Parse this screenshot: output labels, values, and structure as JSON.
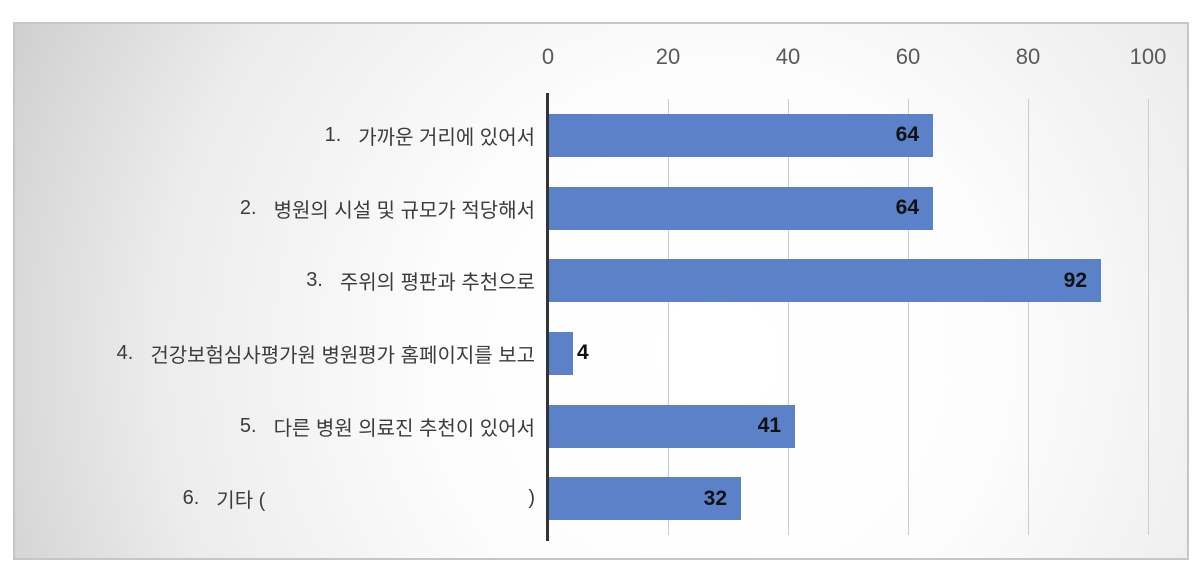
{
  "chart_data": {
    "type": "bar",
    "orientation": "horizontal",
    "title": "",
    "legend": false,
    "gridlines": true,
    "categories": [
      {
        "no": "1.",
        "label": "가까운 거리에 있어서"
      },
      {
        "no": "2.",
        "label": "병원의 시설 및 규모가 적당해서"
      },
      {
        "no": "3.",
        "label": "주위의 평판과 추천으로"
      },
      {
        "no": "4.",
        "label": "건강보험심사평가원 병원평가 홈페이지를 보고"
      },
      {
        "no": "5.",
        "label": "다른 병원 의료진 추천이 있어서"
      },
      {
        "no": "6.",
        "label": "기타 (",
        "label_suffix": ")"
      }
    ],
    "values": [
      64,
      64,
      92,
      4,
      41,
      32
    ],
    "data_labels": [
      "64",
      "64",
      "92",
      "4",
      "41",
      "32"
    ],
    "x_axis": {
      "position": "top",
      "min": 0,
      "max": 100,
      "ticks": [
        0,
        20,
        40,
        60,
        80,
        100
      ],
      "tick_labels": [
        "0",
        "20",
        "40",
        "60",
        "80",
        "100"
      ]
    },
    "colors": {
      "bar": "#5b82c9",
      "value_label": "#111111",
      "tick_label": "#595959",
      "category_label": "#3c3c3c",
      "gridline": "#cccccc",
      "axis_line": "#333333",
      "frame_border": "#c6c6c6"
    }
  }
}
